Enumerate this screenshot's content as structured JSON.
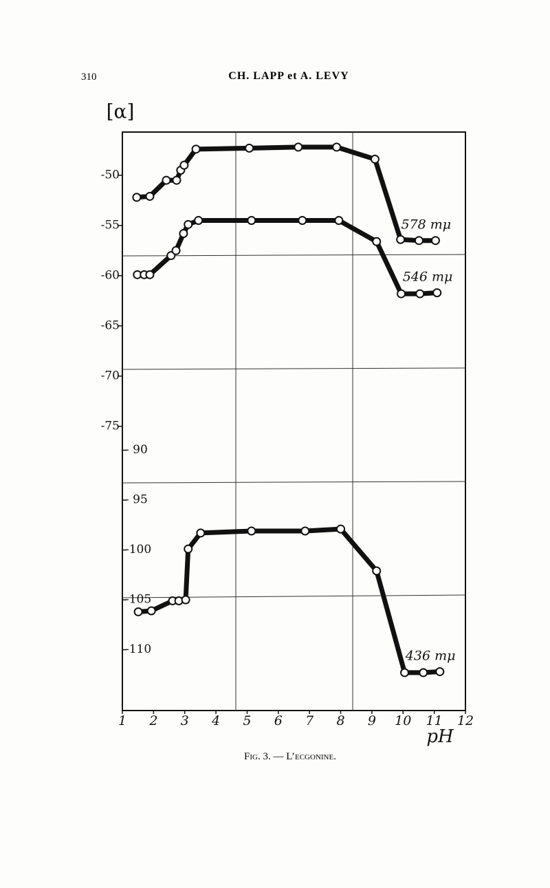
{
  "header": {
    "page_number": "310",
    "authors": "CH. LAPP et A. LEVY"
  },
  "caption": "Fig. 3. — L’ecgonine.",
  "chart_data": [
    {
      "type": "line",
      "ylabel": "[α]",
      "xlabel": "pH",
      "xlim": [
        1,
        12
      ],
      "xticks": [
        1,
        2,
        3,
        4,
        5,
        6,
        7,
        8,
        9,
        10,
        11,
        12
      ],
      "ylim": [
        -103.3,
        -45.7
      ],
      "yticks": [
        -50,
        -55,
        -60,
        -65,
        -70,
        -75
      ],
      "series": [
        {
          "name": "578 mμ",
          "color": "#111",
          "x": [
            1.46,
            1.88,
            2.41,
            2.74,
            2.87,
            2.98,
            3.36,
            5.07,
            6.64,
            7.87,
            9.1,
            9.92,
            10.51,
            11.04
          ],
          "values": [
            -52.2,
            -52.1,
            -50.5,
            -50.5,
            -49.5,
            -49.0,
            -47.4,
            -47.3,
            -47.2,
            -47.2,
            -48.4,
            -56.4,
            -56.5,
            -56.5
          ]
        },
        {
          "name": "546 mμ",
          "color": "#111",
          "x": [
            1.48,
            1.7,
            1.88,
            2.56,
            2.72,
            2.96,
            3.11,
            3.44,
            5.14,
            6.77,
            7.94,
            9.15,
            9.94,
            10.54,
            11.09
          ],
          "values": [
            -59.9,
            -59.9,
            -59.9,
            -58.0,
            -57.5,
            -55.8,
            -54.9,
            -54.5,
            -54.5,
            -54.5,
            -54.5,
            -56.6,
            -61.8,
            -61.8,
            -61.7
          ]
        }
      ]
    },
    {
      "type": "line",
      "xlim": [
        1,
        12
      ],
      "ylim": [
        -116.1,
        -58.1
      ],
      "yticks": [
        {
          "value": -90,
          "label": "- 90"
        },
        {
          "value": -95,
          "label": "- 95"
        },
        -100,
        -105,
        -110
      ],
      "series": [
        {
          "name": "436 mμ",
          "color": "#111",
          "x": [
            1.51,
            1.93,
            2.61,
            2.81,
            3.03,
            3.11,
            3.51,
            5.14,
            6.86,
            8.0,
            9.15,
            10.05,
            10.65,
            11.18
          ],
          "values": [
            -106.2,
            -106.1,
            -105.1,
            -105.1,
            -105.0,
            -99.9,
            -98.3,
            -98.1,
            -98.1,
            -97.9,
            -102.1,
            -112.3,
            -112.3,
            -112.2
          ]
        }
      ]
    }
  ]
}
